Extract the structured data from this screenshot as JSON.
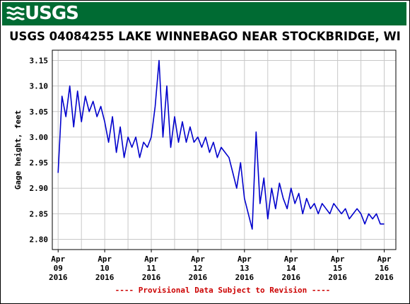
{
  "banner": {
    "logo_text": "USGS",
    "logo_icon": "usgs-wave-icon",
    "color": "#006b33"
  },
  "colors": {
    "series": "#0000cc",
    "grid": "#c8c8c8",
    "footnote": "#cc0000"
  },
  "footnote": "---- Provisional Data Subject to Revision ----",
  "chart_data": {
    "type": "line",
    "title": "USGS 04084255 LAKE WINNEBAGO NEAR STOCKBRIDGE, WI",
    "xlabel": "",
    "ylabel": "Gage height, feet",
    "xlim": [
      "2016-04-08T21:00",
      "2016-04-16T06:00"
    ],
    "ylim": [
      2.78,
      3.17
    ],
    "yticks": [
      2.8,
      2.85,
      2.9,
      2.95,
      3.0,
      3.05,
      3.1,
      3.15
    ],
    "ytick_labels": [
      "2.80",
      "2.85",
      "2.90",
      "2.95",
      "3.00",
      "3.05",
      "3.10",
      "3.15"
    ],
    "xticks": [
      "2016-04-09",
      "2016-04-10",
      "2016-04-11",
      "2016-04-12",
      "2016-04-13",
      "2016-04-14",
      "2016-04-15",
      "2016-04-16"
    ],
    "xtick_labels": [
      [
        "Apr",
        "09",
        "2016"
      ],
      [
        "Apr",
        "10",
        "2016"
      ],
      [
        "Apr",
        "11",
        "2016"
      ],
      [
        "Apr",
        "12",
        "2016"
      ],
      [
        "Apr",
        "13",
        "2016"
      ],
      [
        "Apr",
        "14",
        "2016"
      ],
      [
        "Apr",
        "15",
        "2016"
      ],
      [
        "Apr",
        "16",
        "2016"
      ]
    ],
    "grid": true,
    "series": [
      {
        "x": [
          "2016-04-09T00:00",
          "2016-04-09T02:00",
          "2016-04-09T04:00",
          "2016-04-09T06:00",
          "2016-04-09T08:00",
          "2016-04-09T10:00",
          "2016-04-09T12:00",
          "2016-04-09T14:00",
          "2016-04-09T16:00",
          "2016-04-09T18:00",
          "2016-04-09T20:00",
          "2016-04-09T22:00",
          "2016-04-10T00:00",
          "2016-04-10T02:00",
          "2016-04-10T04:00",
          "2016-04-10T06:00",
          "2016-04-10T08:00",
          "2016-04-10T10:00",
          "2016-04-10T12:00",
          "2016-04-10T14:00",
          "2016-04-10T16:00",
          "2016-04-10T18:00",
          "2016-04-10T20:00",
          "2016-04-10T22:00",
          "2016-04-11T00:00",
          "2016-04-11T02:00",
          "2016-04-11T04:00",
          "2016-04-11T06:00",
          "2016-04-11T08:00",
          "2016-04-11T10:00",
          "2016-04-11T12:00",
          "2016-04-11T14:00",
          "2016-04-11T16:00",
          "2016-04-11T18:00",
          "2016-04-11T20:00",
          "2016-04-11T22:00",
          "2016-04-12T00:00",
          "2016-04-12T02:00",
          "2016-04-12T04:00",
          "2016-04-12T06:00",
          "2016-04-12T08:00",
          "2016-04-12T10:00",
          "2016-04-12T12:00",
          "2016-04-12T14:00",
          "2016-04-12T16:00",
          "2016-04-12T18:00",
          "2016-04-12T20:00",
          "2016-04-12T22:00",
          "2016-04-13T00:00",
          "2016-04-13T02:00",
          "2016-04-13T04:00",
          "2016-04-13T06:00",
          "2016-04-13T08:00",
          "2016-04-13T10:00",
          "2016-04-13T12:00",
          "2016-04-13T14:00",
          "2016-04-13T16:00",
          "2016-04-13T18:00",
          "2016-04-13T20:00",
          "2016-04-13T22:00",
          "2016-04-14T00:00",
          "2016-04-14T02:00",
          "2016-04-14T04:00",
          "2016-04-14T06:00",
          "2016-04-14T08:00",
          "2016-04-14T10:00",
          "2016-04-14T12:00",
          "2016-04-14T14:00",
          "2016-04-14T16:00",
          "2016-04-14T18:00",
          "2016-04-14T20:00",
          "2016-04-14T22:00",
          "2016-04-15T00:00",
          "2016-04-15T02:00",
          "2016-04-15T04:00",
          "2016-04-15T06:00",
          "2016-04-15T08:00",
          "2016-04-15T10:00",
          "2016-04-15T12:00",
          "2016-04-15T14:00",
          "2016-04-15T16:00",
          "2016-04-15T18:00",
          "2016-04-15T20:00",
          "2016-04-15T22:00",
          "2016-04-16T00:00"
        ],
        "y": [
          2.93,
          3.08,
          3.04,
          3.1,
          3.02,
          3.09,
          3.03,
          3.08,
          3.05,
          3.07,
          3.04,
          3.06,
          3.03,
          2.99,
          3.04,
          2.97,
          3.02,
          2.96,
          3.0,
          2.98,
          3.0,
          2.96,
          2.99,
          2.98,
          3.0,
          3.06,
          3.15,
          3.0,
          3.1,
          2.98,
          3.04,
          2.99,
          3.03,
          2.99,
          3.02,
          2.99,
          3.0,
          2.98,
          3.0,
          2.97,
          2.99,
          2.96,
          2.98,
          2.97,
          2.96,
          2.93,
          2.9,
          2.95,
          2.88,
          2.85,
          2.82,
          3.01,
          2.87,
          2.92,
          2.84,
          2.9,
          2.86,
          2.91,
          2.88,
          2.86,
          2.9,
          2.87,
          2.89,
          2.85,
          2.88,
          2.86,
          2.87,
          2.85,
          2.87,
          2.86,
          2.85,
          2.87,
          2.86,
          2.85,
          2.86,
          2.84,
          2.85,
          2.86,
          2.85,
          2.83,
          2.85,
          2.84,
          2.85,
          2.83,
          2.83
        ]
      }
    ]
  }
}
